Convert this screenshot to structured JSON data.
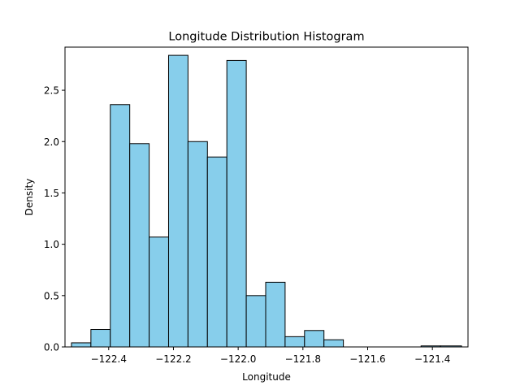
{
  "chart_data": {
    "type": "histogram",
    "title": "Longitude Distribution Histogram",
    "xlabel": "Longitude",
    "ylabel": "Density",
    "xlim": [
      -122.535,
      -121.29
    ],
    "ylim": [
      0,
      2.92
    ],
    "bins": [
      {
        "x0": -122.515,
        "x1": -122.455,
        "value": 0.04
      },
      {
        "x0": -122.455,
        "x1": -122.395,
        "value": 0.17
      },
      {
        "x0": -122.395,
        "x1": -122.335,
        "value": 2.36
      },
      {
        "x0": -122.335,
        "x1": -122.275,
        "value": 1.98
      },
      {
        "x0": -122.275,
        "x1": -122.215,
        "value": 1.07
      },
      {
        "x0": -122.215,
        "x1": -122.155,
        "value": 2.84
      },
      {
        "x0": -122.155,
        "x1": -122.095,
        "value": 2.0
      },
      {
        "x0": -122.095,
        "x1": -122.035,
        "value": 1.85
      },
      {
        "x0": -122.035,
        "x1": -121.975,
        "value": 2.79
      },
      {
        "x0": -121.975,
        "x1": -121.915,
        "value": 0.5
      },
      {
        "x0": -121.915,
        "x1": -121.855,
        "value": 0.63
      },
      {
        "x0": -121.855,
        "x1": -121.795,
        "value": 0.1
      },
      {
        "x0": -121.795,
        "x1": -121.735,
        "value": 0.16
      },
      {
        "x0": -121.735,
        "x1": -121.675,
        "value": 0.07
      },
      {
        "x0": -121.675,
        "x1": -121.615,
        "value": 0.0
      },
      {
        "x0": -121.615,
        "x1": -121.555,
        "value": 0.0
      },
      {
        "x0": -121.555,
        "x1": -121.495,
        "value": 0.0
      },
      {
        "x0": -121.495,
        "x1": -121.435,
        "value": 0.0
      },
      {
        "x0": -121.435,
        "x1": -121.375,
        "value": 0.01
      },
      {
        "x0": -121.375,
        "x1": -121.31,
        "value": 0.01
      }
    ],
    "x_ticks": [
      {
        "value": -122.4,
        "label": "−122.4"
      },
      {
        "value": -122.2,
        "label": "−122.2"
      },
      {
        "value": -122.0,
        "label": "−122.0"
      },
      {
        "value": -121.8,
        "label": "−121.8"
      },
      {
        "value": -121.6,
        "label": "−121.6"
      },
      {
        "value": -121.4,
        "label": "−121.4"
      }
    ],
    "y_ticks": [
      {
        "value": 0.0,
        "label": "0.0"
      },
      {
        "value": 0.5,
        "label": "0.5"
      },
      {
        "value": 1.0,
        "label": "1.0"
      },
      {
        "value": 1.5,
        "label": "1.5"
      },
      {
        "value": 2.0,
        "label": "2.0"
      },
      {
        "value": 2.5,
        "label": "2.5"
      }
    ],
    "bar_color": "#87ceeb",
    "edge_color": "#000000",
    "grid": false,
    "legend": "none"
  }
}
